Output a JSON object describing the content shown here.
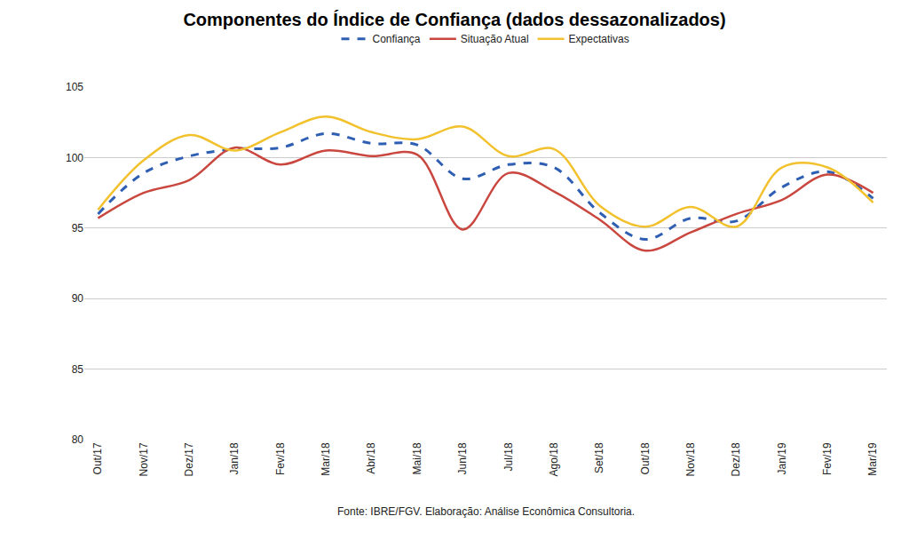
{
  "chart_data": {
    "type": "line",
    "title": "Componentes do Índice de Confiança (dados dessazonalizados)",
    "categories": [
      "Out/17",
      "Nov/17",
      "Dez/17",
      "Jan/18",
      "Fev/18",
      "Mar/18",
      "Abr/18",
      "Mai/18",
      "Jun/18",
      "Jul/18",
      "Ago/18",
      "Set/18",
      "Out/18",
      "Nov/18",
      "Dez/18",
      "Jan/19",
      "Fev/19",
      "Mar/19"
    ],
    "series": [
      {
        "name": "Confiança",
        "color": "#2f5fb3",
        "line_style": "dashed",
        "values": [
          96.0,
          98.9,
          100.1,
          100.6,
          100.7,
          101.7,
          101.0,
          100.9,
          98.5,
          99.5,
          99.3,
          96.1,
          94.2,
          95.7,
          95.5,
          97.9,
          99.0,
          97.1
        ]
      },
      {
        "name": "Situação Atual",
        "color": "#c9473f",
        "line_style": "solid",
        "values": [
          95.7,
          97.5,
          98.4,
          100.7,
          99.5,
          100.5,
          100.1,
          100.2,
          94.9,
          98.9,
          97.6,
          95.6,
          93.4,
          94.7,
          96.0,
          97.0,
          98.8,
          97.5
        ]
      },
      {
        "name": "Expectativas",
        "color": "#f2c12e",
        "line_style": "solid",
        "values": [
          96.3,
          99.8,
          101.6,
          100.5,
          101.8,
          102.9,
          101.8,
          101.3,
          102.2,
          100.1,
          100.6,
          96.6,
          95.1,
          96.5,
          95.1,
          99.3,
          99.3,
          96.8
        ]
      }
    ],
    "ylim": [
      80,
      105
    ],
    "yticks": [
      80,
      85,
      90,
      95,
      100,
      105
    ],
    "grid": true,
    "legend": "top",
    "annotations": [
      "Fonte: IBRE/FGV. Elaboração: Análise Econômica Consultoria."
    ]
  }
}
